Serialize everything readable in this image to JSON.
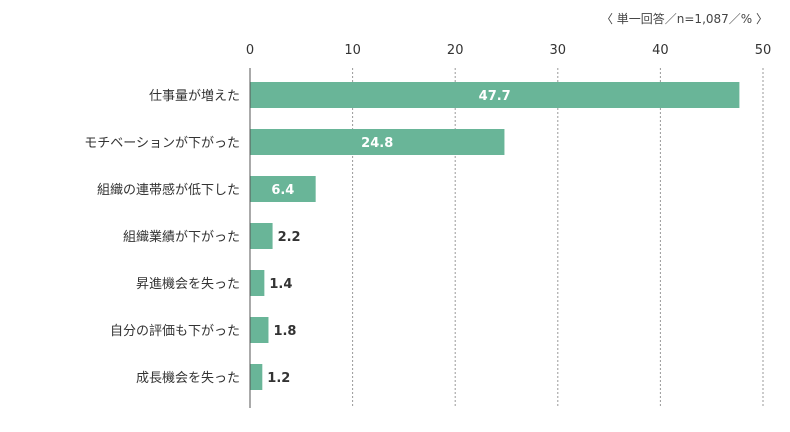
{
  "chart_data": {
    "type": "bar",
    "orientation": "horizontal",
    "note": "〈 単一回答／n=1,087／% 〉",
    "categories": [
      "仕事量が増えた",
      "モチベーションが下がった",
      "組織の連帯感が低下した",
      "組織業績が下がった",
      "昇進機会を失った",
      "自分の評価も下がった",
      "成長機会を失った"
    ],
    "values": [
      47.7,
      24.8,
      6.4,
      2.2,
      1.4,
      1.8,
      1.2
    ],
    "xlim": [
      0,
      50
    ],
    "xticks": [
      0,
      10,
      20,
      30,
      40,
      50
    ],
    "grid": true,
    "bar_color": "#69b598",
    "inside_label_color": "#ffffff",
    "outside_label_color": "#333333"
  }
}
